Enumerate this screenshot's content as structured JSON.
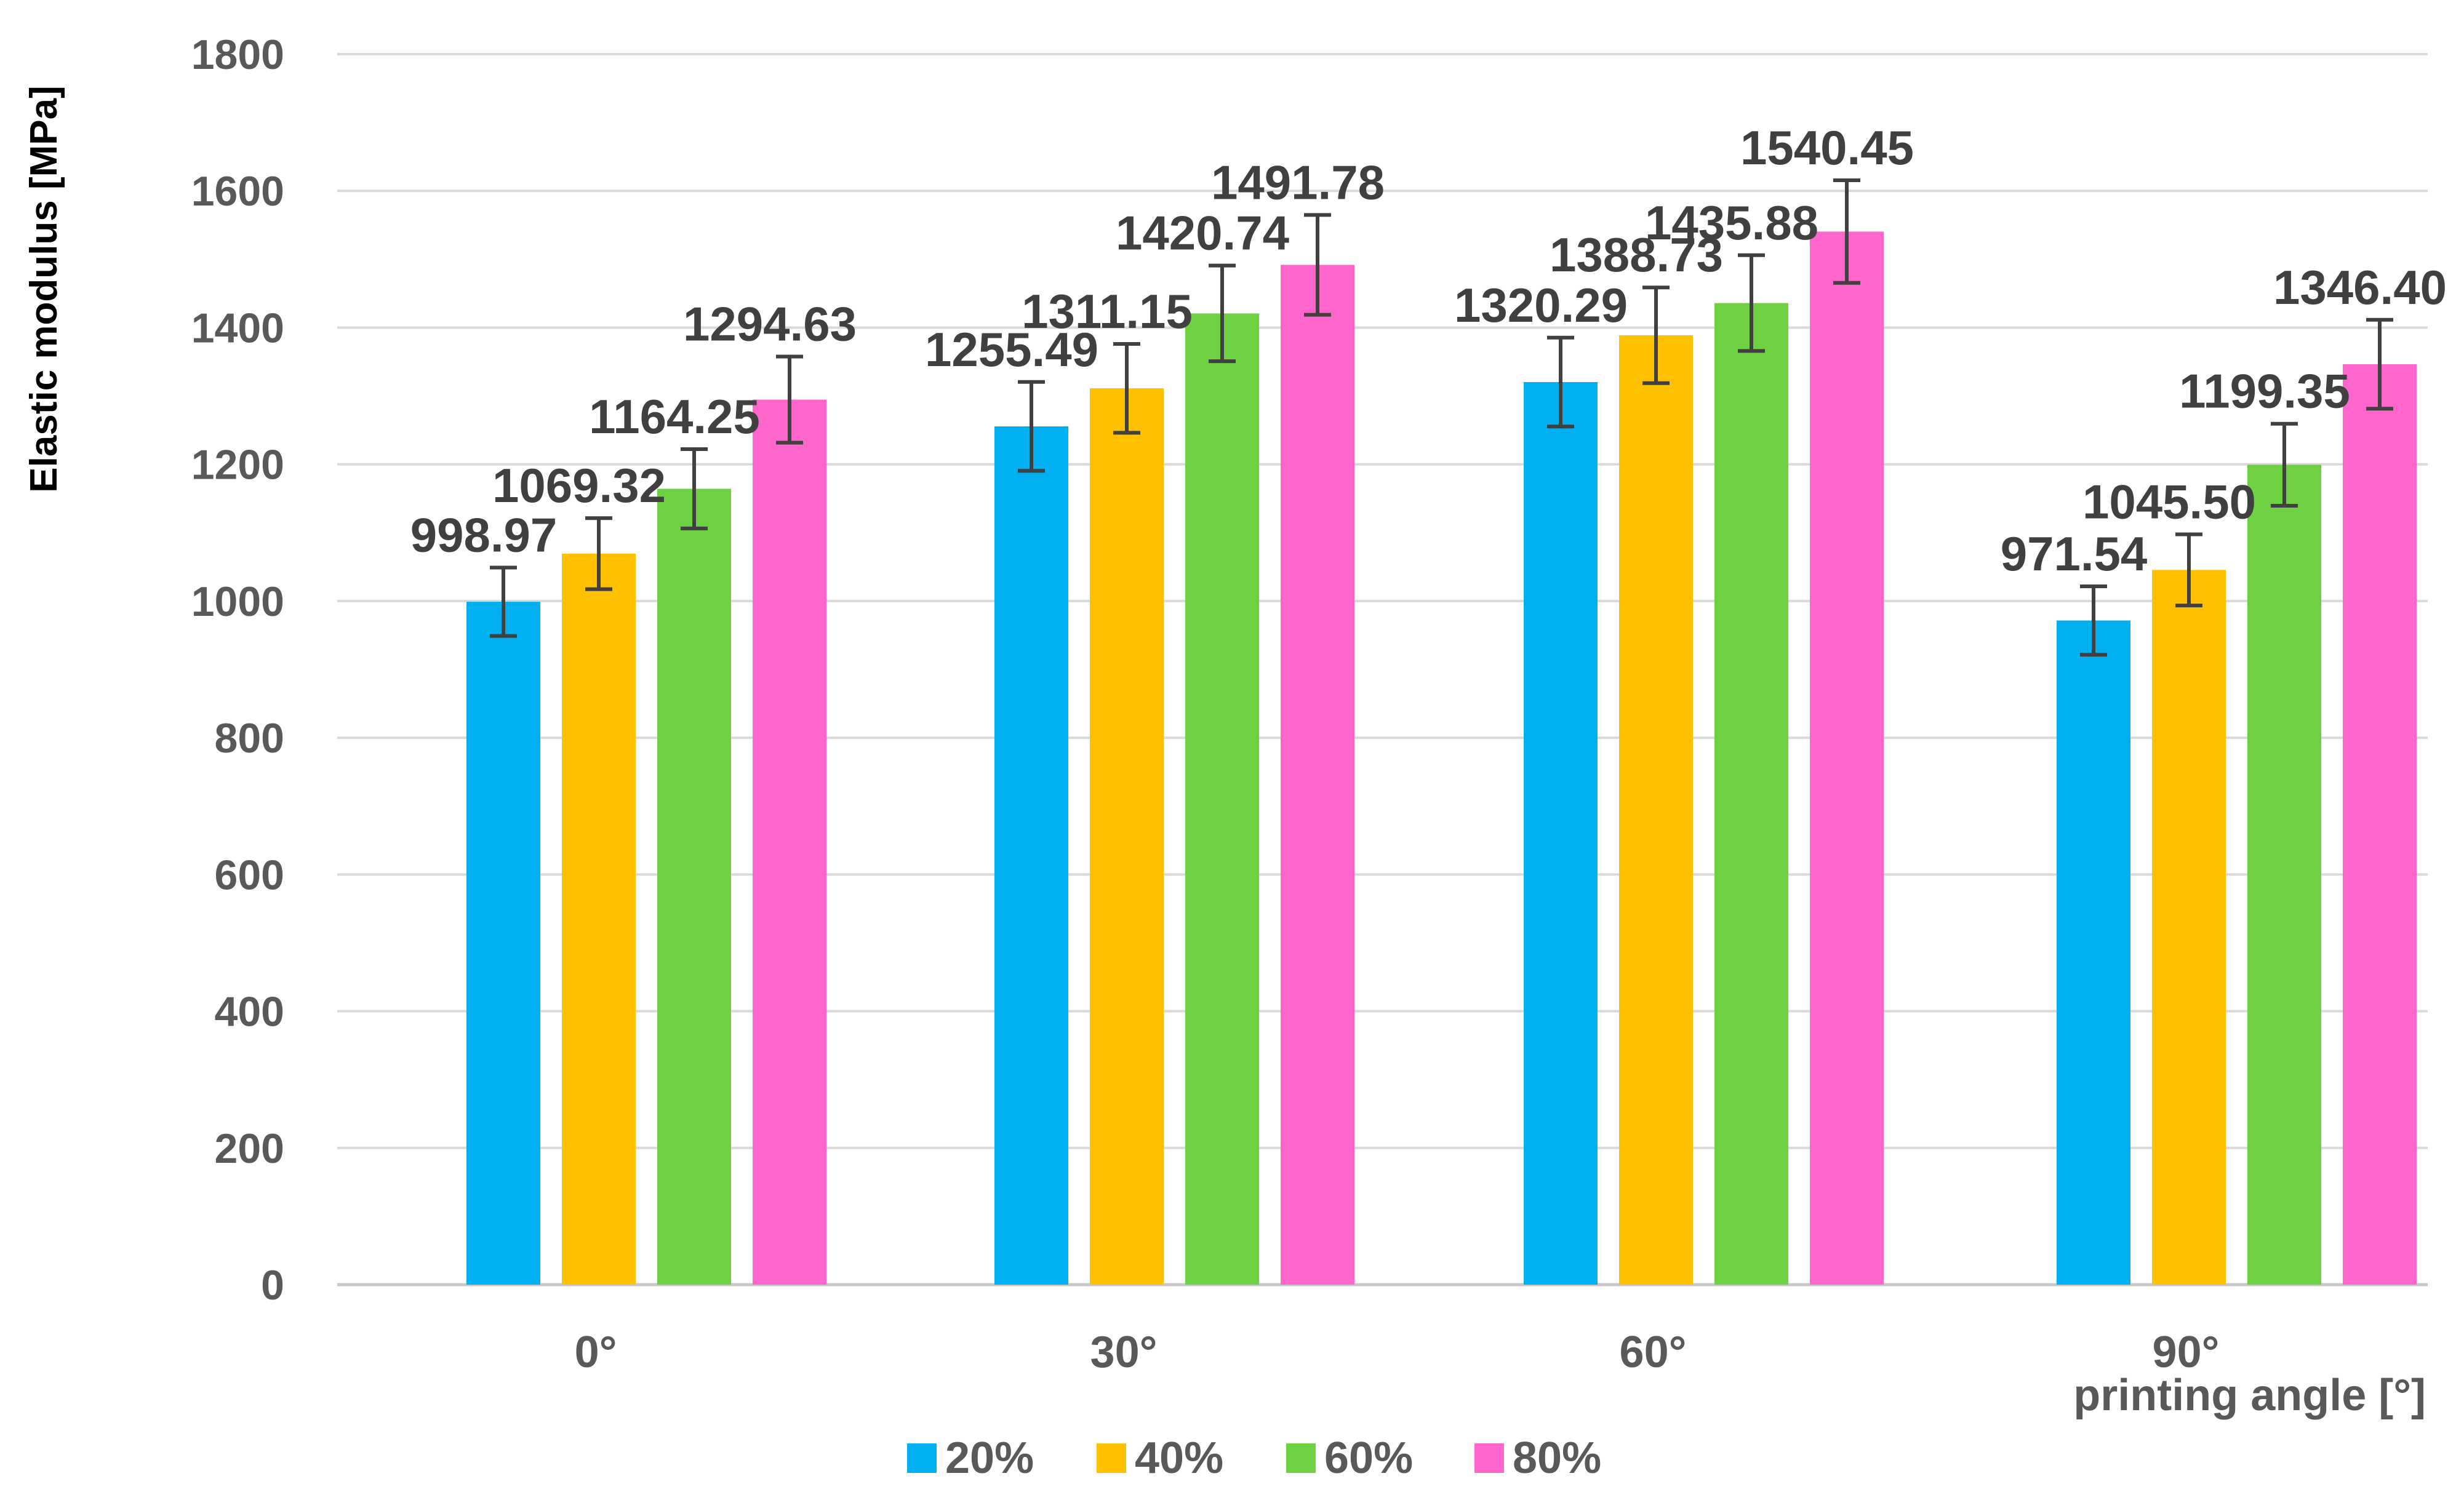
{
  "chart_data": {
    "type": "bar",
    "title": "",
    "xlabel": "printing angle [°]",
    "ylabel": "Elastic modulus [MPa]",
    "ylim": [
      0,
      1800
    ],
    "yticks": [
      0,
      200,
      400,
      600,
      800,
      1000,
      1200,
      1400,
      1600,
      1800
    ],
    "ytick_labels": [
      "0",
      "200",
      "400",
      "600",
      "800",
      "1000",
      "1200",
      "1400",
      "1600",
      "1800"
    ],
    "grid": true,
    "legend_position": "bottom-center",
    "categories": [
      "0°",
      "30°",
      "60°",
      "90°"
    ],
    "series": [
      {
        "name": "20%",
        "color": "#00B0F0",
        "values": [
          998.97,
          1255.49,
          1320.29,
          971.54
        ],
        "labels": [
          "998.97",
          "1255.49",
          "1320.29",
          "971.54"
        ],
        "errors": [
          50,
          65,
          65,
          50
        ]
      },
      {
        "name": "40%",
        "color": "#FFC000",
        "values": [
          1069.32,
          1311.15,
          1388.73,
          1045.5
        ],
        "labels": [
          "1069.32",
          "1311.15",
          "1388.73",
          "1045.50"
        ],
        "errors": [
          52,
          65,
          70,
          52
        ]
      },
      {
        "name": "60%",
        "color": "#6DD142",
        "values": [
          1164.25,
          1420.74,
          1435.88,
          1199.35
        ],
        "labels": [
          "1164.25",
          "1420.74",
          "1435.88",
          "1199.35"
        ],
        "errors": [
          58,
          70,
          70,
          60
        ]
      },
      {
        "name": "80%",
        "color": "#FF66CC",
        "values": [
          1294.63,
          1491.78,
          1540.45,
          1346.4
        ],
        "labels": [
          "1294.63",
          "1491.78",
          "1540.45",
          "1346.40"
        ],
        "errors": [
          63,
          73,
          75,
          65
        ]
      }
    ]
  }
}
